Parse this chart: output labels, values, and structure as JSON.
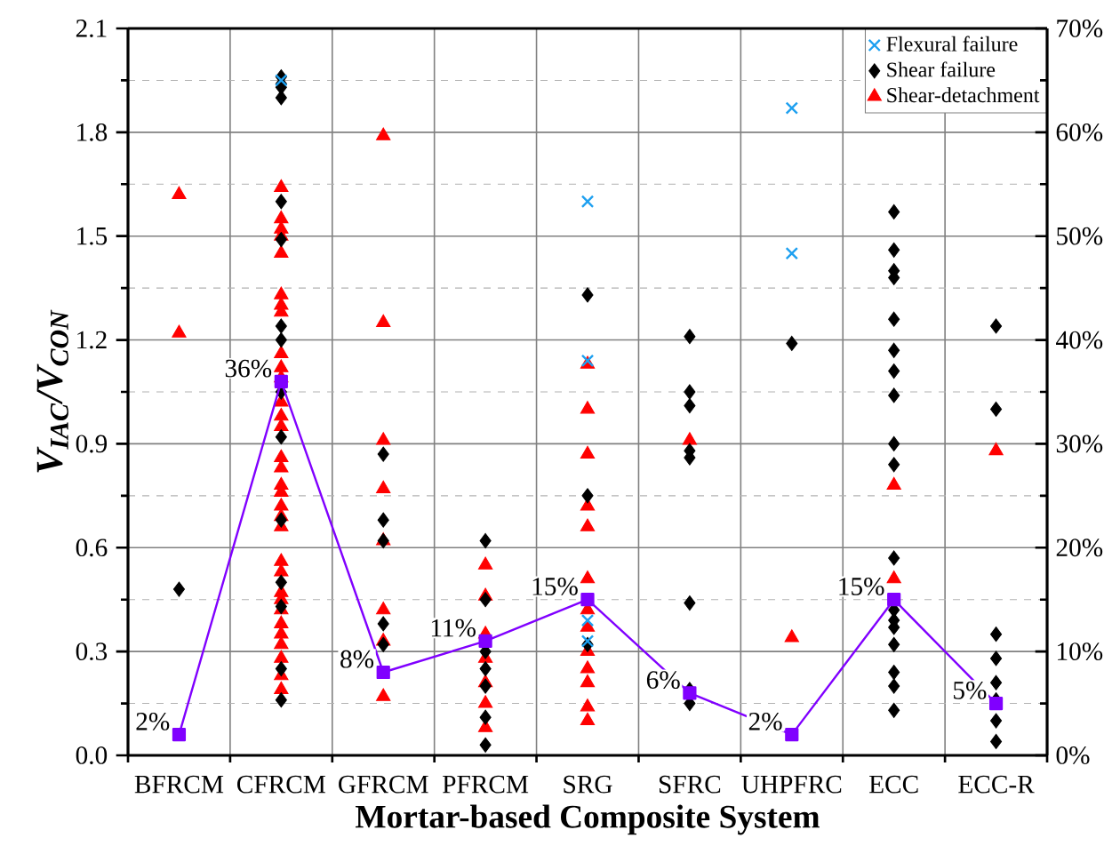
{
  "chart_data": {
    "type": "scatter",
    "xlabel": "Mortar-based Composite System",
    "ylabel": "V$_{IAC}$/V$_{CON}$",
    "categories": [
      "BFRCM",
      "CFRCM",
      "GFRCM",
      "PFRCM",
      "SRG",
      "SFRC",
      "UHPFRC",
      "ECC",
      "ECC-R"
    ],
    "ylim": [
      0,
      2.1
    ],
    "yticks": [
      {
        "value": 0,
        "label": "0.0"
      },
      {
        "value": 0.3,
        "label": "0.3"
      },
      {
        "value": 0.6,
        "label": "0.6"
      },
      {
        "value": 0.9,
        "label": "0.9"
      },
      {
        "value": 1.2,
        "label": "1.2"
      },
      {
        "value": 1.5,
        "label": "1.5"
      },
      {
        "value": 1.8,
        "label": "1.8"
      },
      {
        "value": 2.1,
        "label": "2.1"
      }
    ],
    "y2lim": [
      0,
      70
    ],
    "y2ticks": [
      {
        "value": 0,
        "label": "0%"
      },
      {
        "value": 10,
        "label": "10%"
      },
      {
        "value": 20,
        "label": "20%"
      },
      {
        "value": 30,
        "label": "30%"
      },
      {
        "value": 40,
        "label": "40%"
      },
      {
        "value": 50,
        "label": "50%"
      },
      {
        "value": 60,
        "label": "60%"
      },
      {
        "value": 70,
        "label": "70%"
      }
    ],
    "grid": true,
    "legend": "top right",
    "series": [
      {
        "name": "Flexural failure",
        "marker": "cross",
        "color": "#1ea0f0",
        "x": [
          "CFRCM",
          "SRG",
          "SRG",
          "SRG",
          "SRG",
          "UHPFRC",
          "UHPFRC"
        ],
        "values": [
          1.95,
          1.6,
          1.14,
          0.39,
          0.33,
          1.87,
          1.45
        ]
      },
      {
        "name": "Shear failure",
        "marker": "diamond",
        "color": "#000000",
        "x": [
          "BFRCM",
          "CFRCM",
          "CFRCM",
          "CFRCM",
          "CFRCM",
          "CFRCM",
          "CFRCM",
          "CFRCM",
          "CFRCM",
          "CFRCM",
          "CFRCM",
          "CFRCM",
          "CFRCM",
          "CFRCM",
          "CFRCM",
          "CFRCM",
          "GFRCM",
          "GFRCM",
          "GFRCM",
          "GFRCM",
          "GFRCM",
          "PFRCM",
          "PFRCM",
          "PFRCM",
          "PFRCM",
          "PFRCM",
          "PFRCM",
          "PFRCM",
          "SRG",
          "SRG",
          "SRG",
          "SFRC",
          "SFRC",
          "SFRC",
          "SFRC",
          "SFRC",
          "SFRC",
          "SFRC",
          "SFRC",
          "UHPFRC",
          "ECC",
          "ECC",
          "ECC",
          "ECC",
          "ECC",
          "ECC",
          "ECC",
          "ECC",
          "ECC",
          "ECC",
          "ECC",
          "ECC",
          "ECC",
          "ECC",
          "ECC",
          "ECC",
          "ECC",
          "ECC",
          "ECC-R",
          "ECC-R",
          "ECC-R",
          "ECC-R",
          "ECC-R",
          "ECC-R",
          "ECC-R",
          "ECC-R"
        ],
        "values": [
          0.48,
          1.96,
          1.94,
          1.93,
          1.9,
          1.6,
          1.49,
          1.24,
          1.2,
          1.05,
          0.92,
          0.68,
          0.5,
          0.43,
          0.25,
          0.16,
          0.87,
          0.68,
          0.62,
          0.38,
          0.32,
          0.62,
          0.45,
          0.3,
          0.25,
          0.2,
          0.11,
          0.03,
          1.33,
          0.75,
          0.32,
          1.21,
          1.05,
          1.01,
          0.88,
          0.86,
          0.44,
          0.19,
          0.15,
          1.19,
          1.57,
          1.46,
          1.4,
          1.38,
          1.26,
          1.17,
          1.11,
          1.04,
          0.9,
          0.84,
          0.57,
          0.42,
          0.39,
          0.37,
          0.32,
          0.24,
          0.2,
          0.13,
          1.24,
          1.0,
          0.35,
          0.28,
          0.21,
          0.16,
          0.1,
          0.04
        ]
      },
      {
        "name": "Shear-detachment",
        "marker": "triangle",
        "color": "#ff0000",
        "x": [
          "BFRCM",
          "BFRCM",
          "CFRCM",
          "CFRCM",
          "CFRCM",
          "CFRCM",
          "CFRCM",
          "CFRCM",
          "CFRCM",
          "CFRCM",
          "CFRCM",
          "CFRCM",
          "CFRCM",
          "CFRCM",
          "CFRCM",
          "CFRCM",
          "CFRCM",
          "CFRCM",
          "CFRCM",
          "CFRCM",
          "CFRCM",
          "CFRCM",
          "CFRCM",
          "CFRCM",
          "CFRCM",
          "CFRCM",
          "CFRCM",
          "CFRCM",
          "CFRCM",
          "CFRCM",
          "CFRCM",
          "CFRCM",
          "CFRCM",
          "CFRCM",
          "GFRCM",
          "GFRCM",
          "GFRCM",
          "GFRCM",
          "GFRCM",
          "GFRCM",
          "GFRCM",
          "GFRCM",
          "PFRCM",
          "PFRCM",
          "PFRCM",
          "PFRCM",
          "PFRCM",
          "PFRCM",
          "PFRCM",
          "SRG",
          "SRG",
          "SRG",
          "SRG",
          "SRG",
          "SRG",
          "SRG",
          "SRG",
          "SRG",
          "SRG",
          "SRG",
          "SRG",
          "SRG",
          "SFRC",
          "UHPFRC",
          "ECC",
          "ECC",
          "ECC-R"
        ],
        "values": [
          1.62,
          1.22,
          1.64,
          1.55,
          1.52,
          1.5,
          1.45,
          1.33,
          1.3,
          1.28,
          1.16,
          1.12,
          1.09,
          1.02,
          0.98,
          0.95,
          0.86,
          0.83,
          0.78,
          0.76,
          0.72,
          0.69,
          0.66,
          0.56,
          0.53,
          0.47,
          0.45,
          0.42,
          0.38,
          0.35,
          0.32,
          0.28,
          0.23,
          0.19,
          1.79,
          1.25,
          0.91,
          0.77,
          0.62,
          0.42,
          0.33,
          0.17,
          0.55,
          0.46,
          0.35,
          0.28,
          0.21,
          0.15,
          0.08,
          1.13,
          1.0,
          0.87,
          0.72,
          0.66,
          0.51,
          0.42,
          0.37,
          0.3,
          0.25,
          0.21,
          0.14,
          0.1,
          0.91,
          0.34,
          0.78,
          0.51,
          0.88
        ]
      },
      {
        "type": "line",
        "axis": "y2",
        "marker": "square",
        "line_style": "solid",
        "color": "#8000ff",
        "values": [
          2,
          36,
          8,
          11,
          15,
          6,
          2,
          15,
          5
        ],
        "value_labels": [
          "2%",
          "36%",
          "8%",
          "11%",
          "15%",
          "6%",
          "2%",
          "15%",
          "5%"
        ]
      }
    ]
  }
}
